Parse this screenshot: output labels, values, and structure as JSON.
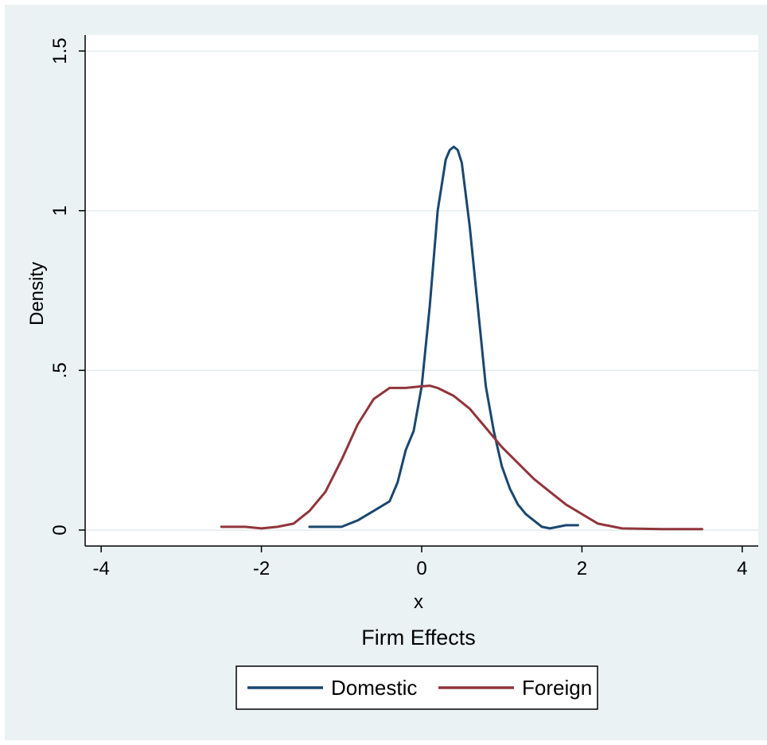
{
  "chart_data": {
    "type": "line",
    "xlabel": "x",
    "subtitle": "Firm Effects",
    "ylabel": "Density",
    "xlim": [
      -4.2,
      4.2
    ],
    "ylim": [
      -0.05,
      1.55
    ],
    "x_ticks": [
      -4,
      -2,
      0,
      2,
      4
    ],
    "x_tick_labels": [
      "-4",
      "-2",
      "0",
      "2",
      "4"
    ],
    "y_ticks": [
      0,
      0.5,
      1,
      1.5
    ],
    "y_tick_labels": [
      "0",
      ".5",
      "1",
      "1.5"
    ],
    "grid": "horizontal",
    "legend": "bottom",
    "series": [
      {
        "name": "Domestic",
        "color": "#1a476f",
        "x": [
          -1.4,
          -1.2,
          -1.0,
          -0.8,
          -0.6,
          -0.4,
          -0.3,
          -0.2,
          -0.1,
          0.0,
          0.1,
          0.2,
          0.3,
          0.35,
          0.4,
          0.45,
          0.5,
          0.6,
          0.7,
          0.8,
          0.9,
          1.0,
          1.1,
          1.2,
          1.3,
          1.4,
          1.5,
          1.6,
          1.7,
          1.8,
          1.95
        ],
        "y": [
          0.01,
          0.01,
          0.01,
          0.03,
          0.06,
          0.09,
          0.15,
          0.25,
          0.31,
          0.45,
          0.7,
          1.0,
          1.16,
          1.19,
          1.2,
          1.19,
          1.15,
          0.95,
          0.7,
          0.45,
          0.31,
          0.2,
          0.13,
          0.08,
          0.05,
          0.03,
          0.01,
          0.005,
          0.01,
          0.015,
          0.015
        ]
      },
      {
        "name": "Foreign",
        "color": "#90353b",
        "x": [
          -2.5,
          -2.2,
          -2.0,
          -1.8,
          -1.6,
          -1.4,
          -1.2,
          -1.0,
          -0.8,
          -0.6,
          -0.4,
          -0.2,
          0.0,
          0.1,
          0.2,
          0.4,
          0.6,
          0.8,
          1.0,
          1.2,
          1.4,
          1.6,
          1.8,
          2.0,
          2.2,
          2.5,
          3.0,
          3.5
        ],
        "y": [
          0.01,
          0.01,
          0.005,
          0.01,
          0.02,
          0.06,
          0.12,
          0.22,
          0.33,
          0.41,
          0.445,
          0.445,
          0.45,
          0.452,
          0.445,
          0.42,
          0.38,
          0.32,
          0.26,
          0.21,
          0.16,
          0.12,
          0.08,
          0.05,
          0.02,
          0.005,
          0.003,
          0.003
        ]
      }
    ]
  }
}
